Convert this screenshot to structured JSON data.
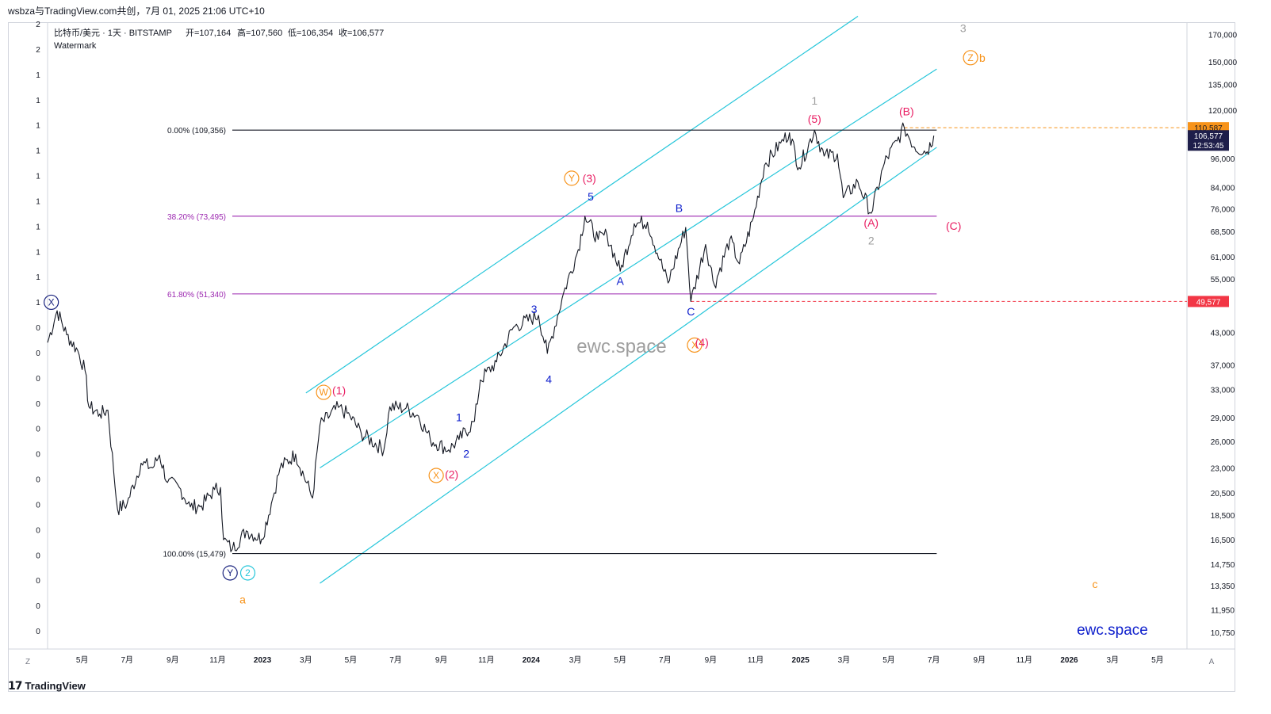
{
  "header": {
    "caption": "wsbza与TradingView.com共创，7月 01, 2025 21:06 UTC+10",
    "symbol_line": "比特币/美元 · 1天 · BITSTAMP",
    "ohlc": [
      "开=107,164",
      "高=107,560",
      "低=106,354",
      "收=106,577"
    ],
    "watermark_label": "Watermark"
  },
  "footer": {
    "brand": "TradingView"
  },
  "corners": {
    "left": "Z",
    "right": "A"
  },
  "chart_data": {
    "type": "line",
    "symbol": "BTC/USD",
    "exchange": "BITSTAMP",
    "interval": "1D",
    "scale": "log",
    "ylim": [
      10000,
      180000
    ],
    "price_ticks": [
      170000,
      150000,
      135000,
      120000,
      96000,
      84000,
      76000,
      68500,
      61000,
      55000,
      43000,
      37000,
      33000,
      29000,
      26000,
      23000,
      20500,
      18500,
      16500,
      14750,
      13350,
      11950,
      10750
    ],
    "price_tick_labels": [
      "170,000",
      "150,000",
      "135,000",
      "120,000",
      "96,000",
      "84,000",
      "76,000",
      "68,500",
      "61,000",
      "55,000",
      "43,000",
      "37,000",
      "33,000",
      "29,000",
      "26,000",
      "23,000",
      "20,500",
      "18,500",
      "16,500",
      "14,750",
      "13,350",
      "11,950",
      "10,750"
    ],
    "price_labels": [
      {
        "text": "110,587",
        "value": 110587,
        "bg": "#f7931a",
        "fg": "#131722"
      },
      {
        "text": "106,577",
        "sub": "12:53:45",
        "value": 106577,
        "bg": "#1e1e4a",
        "fg": "#ffffff"
      },
      {
        "text": "49,577",
        "value": 49577,
        "bg": "#f23645",
        "fg": "#ffffff"
      }
    ],
    "x_tick_labels": [
      "5月",
      "7月",
      "9月",
      "11月",
      "2023",
      "3月",
      "5月",
      "7月",
      "9月",
      "11月",
      "2024",
      "3月",
      "5月",
      "7月",
      "9月",
      "11月",
      "2025",
      "3月",
      "5月",
      "7月",
      "9月",
      "11月",
      "2026",
      "3月",
      "5月"
    ],
    "bold_x_ticks": [
      "2023",
      "2024",
      "2025",
      "2026"
    ],
    "x_range": [
      "2022-03-15",
      "2026-06-10"
    ],
    "left_scale_labels": [
      "2",
      "2",
      "1",
      "1",
      "1",
      "1",
      "1",
      "1",
      "1",
      "1",
      "1",
      "1",
      "0",
      "0",
      "0",
      "0",
      "0",
      "0",
      "0",
      "0",
      "0",
      "0",
      "0",
      "0",
      "0"
    ],
    "price_path": [
      [
        "2022-03-15",
        41000
      ],
      [
        "2022-03-28",
        47500
      ],
      [
        "2022-04-10",
        42500
      ],
      [
        "2022-04-25",
        39500
      ],
      [
        "2022-05-05",
        36000
      ],
      [
        "2022-05-10",
        30500
      ],
      [
        "2022-05-25",
        29500
      ],
      [
        "2022-06-05",
        30000
      ],
      [
        "2022-06-13",
        22500
      ],
      [
        "2022-06-18",
        19000
      ],
      [
        "2022-07-01",
        19500
      ],
      [
        "2022-07-20",
        23500
      ],
      [
        "2022-08-05",
        23000
      ],
      [
        "2022-08-14",
        24400
      ],
      [
        "2022-08-25",
        21500
      ],
      [
        "2022-09-10",
        21000
      ],
      [
        "2022-09-25",
        19200
      ],
      [
        "2022-10-10",
        19300
      ],
      [
        "2022-10-28",
        20800
      ],
      [
        "2022-11-05",
        21000
      ],
      [
        "2022-11-09",
        16500
      ],
      [
        "2022-11-21",
        15800
      ],
      [
        "2022-12-10",
        17200
      ],
      [
        "2022-12-31",
        16550
      ],
      [
        "2023-01-13",
        19500
      ],
      [
        "2023-01-25",
        23000
      ],
      [
        "2023-02-15",
        24500
      ],
      [
        "2023-03-10",
        20000
      ],
      [
        "2023-03-20",
        28000
      ],
      [
        "2023-04-14",
        30400
      ],
      [
        "2023-04-30",
        29200
      ],
      [
        "2023-05-15",
        27000
      ],
      [
        "2023-06-15",
        25000
      ],
      [
        "2023-06-23",
        30500
      ],
      [
        "2023-07-15",
        30300
      ],
      [
        "2023-08-01",
        29200
      ],
      [
        "2023-08-17",
        26200
      ],
      [
        "2023-09-11",
        25000
      ],
      [
        "2023-09-25",
        26200
      ],
      [
        "2023-10-16",
        28500
      ],
      [
        "2023-10-24",
        34500
      ],
      [
        "2023-11-15",
        37500
      ],
      [
        "2023-12-08",
        44000
      ],
      [
        "2024-01-11",
        46500
      ],
      [
        "2024-01-23",
        39000
      ],
      [
        "2024-02-14",
        51500
      ],
      [
        "2024-03-05",
        63000
      ],
      [
        "2024-03-14",
        73495
      ],
      [
        "2024-04-01",
        66000
      ],
      [
        "2024-04-13",
        67500
      ],
      [
        "2024-05-01",
        57000
      ],
      [
        "2024-05-20",
        71000
      ],
      [
        "2024-06-07",
        71500
      ],
      [
        "2024-06-24",
        60000
      ],
      [
        "2024-07-05",
        54000
      ],
      [
        "2024-07-29",
        69800
      ],
      [
        "2024-08-05",
        49577
      ],
      [
        "2024-08-25",
        64500
      ],
      [
        "2024-09-06",
        53500
      ],
      [
        "2024-09-27",
        66000
      ],
      [
        "2024-10-10",
        59000
      ],
      [
        "2024-10-29",
        73000
      ],
      [
        "2024-11-13",
        93000
      ],
      [
        "2024-12-05",
        103000
      ],
      [
        "2024-12-17",
        108000
      ],
      [
        "2024-12-30",
        92000
      ],
      [
        "2025-01-20",
        109356
      ],
      [
        "2025-02-02",
        97000
      ],
      [
        "2025-02-20",
        98000
      ],
      [
        "2025-02-28",
        80000
      ],
      [
        "2025-03-20",
        86000
      ],
      [
        "2025-04-07",
        74500
      ],
      [
        "2025-04-25",
        94000
      ],
      [
        "2025-05-12",
        104000
      ],
      [
        "2025-05-22",
        110587
      ],
      [
        "2025-06-05",
        101000
      ],
      [
        "2025-06-22",
        99000
      ],
      [
        "2025-07-01",
        106577
      ]
    ],
    "fib_levels": [
      {
        "label": "0.00% (109,356)",
        "value": 109356,
        "color": "#131722"
      },
      {
        "label": "38.20% (73,495)",
        "value": 73495,
        "color": "#9c27b0"
      },
      {
        "label": "61.80% (51,340)",
        "value": 51340,
        "color": "#9c27b0"
      },
      {
        "label": "100.00% (15,479)",
        "value": 15479,
        "color": "#131722"
      }
    ],
    "fib_range": [
      "2022-11-21",
      "2025-07-05"
    ],
    "horizontal_lines": [
      {
        "value": 110587,
        "from": "2025-05-22",
        "color": "#f7931a",
        "style": "dashed"
      },
      {
        "value": 49577,
        "from": "2024-08-05",
        "color": "#f23645",
        "style": "dashed"
      }
    ],
    "channel": {
      "color": "#26c6da",
      "lines": [
        [
          [
            "2023-03-01",
            32500
          ],
          [
            "2025-03-20",
            185000
          ]
        ],
        [
          [
            "2023-03-20",
            23000
          ],
          [
            "2025-07-05",
            145000
          ]
        ],
        [
          [
            "2023-03-20",
            13500
          ],
          [
            "2025-07-05",
            101000
          ]
        ]
      ]
    },
    "wave_labels": [
      {
        "text": "X",
        "date": "2022-03-20",
        "price": 48500,
        "color": "#1a237e",
        "circle": true
      },
      {
        "text": "Y",
        "date": "2022-11-18",
        "price": 13900,
        "color": "#1a237e",
        "circle": true
      },
      {
        "text": "2",
        "date": "2022-12-12",
        "price": 13900,
        "color": "#26c6da",
        "circle": true
      },
      {
        "text": "a",
        "date": "2022-12-05",
        "price": 12300,
        "color": "#f7931a"
      },
      {
        "text": "W",
        "date": "2023-03-25",
        "price": 32000,
        "color": "#f7931a",
        "circle": true
      },
      {
        "text": "(1)",
        "date": "2023-04-15",
        "price": 32300,
        "color": "#e91e63"
      },
      {
        "text": "X",
        "date": "2023-08-25",
        "price": 21800,
        "color": "#f7931a",
        "circle": true
      },
      {
        "text": "(2)",
        "date": "2023-09-15",
        "price": 21900,
        "color": "#e91e63"
      },
      {
        "text": "1",
        "date": "2023-09-25",
        "price": 28500,
        "color": "#0d1ecc"
      },
      {
        "text": "2",
        "date": "2023-10-05",
        "price": 24100,
        "color": "#0d1ecc"
      },
      {
        "text": "3",
        "date": "2024-01-05",
        "price": 47000,
        "color": "#0d1ecc"
      },
      {
        "text": "4",
        "date": "2024-01-25",
        "price": 34000,
        "color": "#0d1ecc"
      },
      {
        "text": "Y",
        "date": "2024-02-25",
        "price": 86000,
        "color": "#f7931a",
        "circle": true
      },
      {
        "text": "(3)",
        "date": "2024-03-20",
        "price": 86000,
        "color": "#e91e63"
      },
      {
        "text": "5",
        "date": "2024-03-22",
        "price": 79000,
        "color": "#0d1ecc"
      },
      {
        "text": "A",
        "date": "2024-05-01",
        "price": 53500,
        "color": "#0d1ecc"
      },
      {
        "text": "B",
        "date": "2024-07-20",
        "price": 75000,
        "color": "#0d1ecc"
      },
      {
        "text": "C",
        "date": "2024-08-05",
        "price": 46500,
        "color": "#0d1ecc"
      },
      {
        "text": "X",
        "date": "2024-08-10",
        "price": 39800,
        "color": "#f7931a",
        "circle": true
      },
      {
        "text": "(4)",
        "date": "2024-08-20",
        "price": 40300,
        "color": "#e91e63"
      },
      {
        "text": "1",
        "date": "2025-01-20",
        "price": 123000,
        "color": "#9e9e9e"
      },
      {
        "text": "(5)",
        "date": "2025-01-20",
        "price": 113000,
        "color": "#e91e63"
      },
      {
        "text": "(A)",
        "date": "2025-04-07",
        "price": 70000,
        "color": "#e91e63"
      },
      {
        "text": "2",
        "date": "2025-04-07",
        "price": 64500,
        "color": "#9e9e9e"
      },
      {
        "text": "(B)",
        "date": "2025-05-25",
        "price": 117000,
        "color": "#e91e63"
      },
      {
        "text": "(C)",
        "date": "2025-07-28",
        "price": 69000,
        "color": "#e91e63"
      },
      {
        "text": "3",
        "date": "2025-08-10",
        "price": 172000,
        "color": "#9e9e9e"
      },
      {
        "text": "Z",
        "date": "2025-08-20",
        "price": 150000,
        "color": "#f7931a",
        "circle": true
      },
      {
        "text": "b",
        "date": "2025-09-05",
        "price": 150000,
        "color": "#f7931a"
      },
      {
        "text": "c",
        "date": "2026-02-05",
        "price": 13200,
        "color": "#f7931a"
      }
    ],
    "annotations": [
      "ewc.space",
      "ewc.space"
    ]
  }
}
